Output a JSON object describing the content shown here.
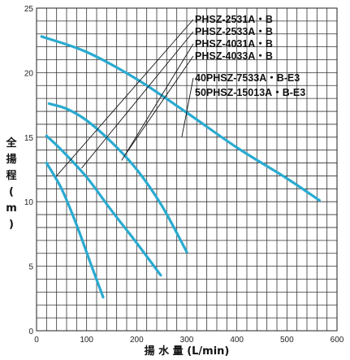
{
  "chart_data": {
    "type": "line",
    "xlabel": "揚 水 量 (L/min)",
    "ylabel": "全揚程(m)",
    "xlim": [
      0,
      600
    ],
    "ylim": [
      0,
      25
    ],
    "x_ticks": [
      "0",
      "100",
      "200",
      "300",
      "400",
      "500",
      "600"
    ],
    "y_ticks": [
      "0",
      "5",
      "10",
      "15",
      "20",
      "25"
    ],
    "grid": true,
    "curve_color": "#2aaad0",
    "legend_labels": [
      "PHSZ-2531A・B",
      "PHSZ-2533A・B",
      "PHSZ-4031A・B",
      "PHSZ-4033A・B",
      "40PHSZ-7533A・B-E3",
      "50PHSZ-15013A・B-E3"
    ],
    "series": [
      {
        "name": "PHSZ-2531A・B / PHSZ-2533A・B",
        "x": [
          20,
          50,
          80,
          110,
          133
        ],
        "y": [
          13.0,
          11.0,
          8.2,
          5.0,
          2.6
        ]
      },
      {
        "name": "PHSZ-4031A・B / PHSZ-4033A・B",
        "x": [
          20,
          50,
          100,
          150,
          200,
          248
        ],
        "y": [
          15.1,
          14.0,
          11.9,
          9.3,
          6.8,
          4.3
        ]
      },
      {
        "name": "40PHSZ-7533A・B-E3",
        "x": [
          25,
          60,
          100,
          150,
          200,
          250,
          300
        ],
        "y": [
          17.6,
          17.2,
          16.3,
          14.6,
          12.5,
          9.7,
          6.1
        ]
      },
      {
        "name": "50PHSZ-15013A・B-E3",
        "x": [
          10,
          100,
          200,
          300,
          400,
          500,
          565
        ],
        "y": [
          22.8,
          21.6,
          19.5,
          16.9,
          14.2,
          11.8,
          10.1
        ]
      }
    ]
  }
}
